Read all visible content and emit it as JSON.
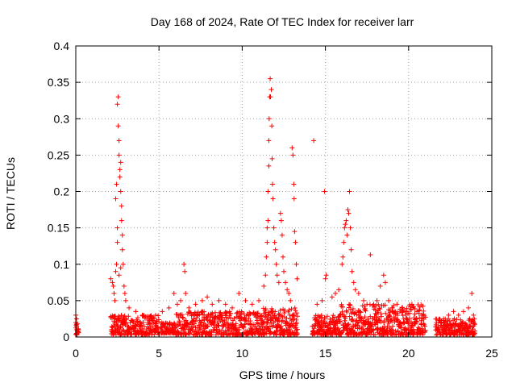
{
  "chart_data": {
    "type": "scatter",
    "title": "Day 168 of 2024, Rate Of TEC Index for receiver larr",
    "xlabel": "GPS time / hours",
    "ylabel": "ROTI / TECUs",
    "xlim": [
      0,
      25
    ],
    "ylim": [
      0,
      0.4
    ],
    "xticks": [
      0,
      5,
      10,
      15,
      20,
      25
    ],
    "xtick_labels": [
      "0",
      "5",
      "10",
      "15",
      "20",
      "25"
    ],
    "yticks": [
      0,
      0.05,
      0.1,
      0.15,
      0.2,
      0.25,
      0.3,
      0.35,
      0.4
    ],
    "ytick_labels": [
      "0",
      "0.05",
      "0.1",
      "0.15",
      "0.2",
      "0.25",
      "0.3",
      "0.35",
      "0.4"
    ],
    "grid": true,
    "marker": "+",
    "color": "#ff0000",
    "series": [
      {
        "name": "ROTI",
        "points": [
          [
            0.0,
            0.03
          ],
          [
            0.0,
            0.02
          ],
          [
            0.05,
            0.015
          ],
          [
            0.05,
            0.01
          ],
          [
            0.1,
            0.018
          ],
          [
            0.1,
            0.008
          ],
          [
            0.05,
            0.025
          ],
          [
            2.1,
            0.08
          ],
          [
            2.2,
            0.075
          ],
          [
            2.25,
            0.07
          ],
          [
            2.3,
            0.06
          ],
          [
            2.35,
            0.05
          ],
          [
            2.4,
            0.19
          ],
          [
            2.45,
            0.21
          ],
          [
            2.5,
            0.15
          ],
          [
            2.5,
            0.32
          ],
          [
            2.55,
            0.33
          ],
          [
            2.55,
            0.29
          ],
          [
            2.6,
            0.27
          ],
          [
            2.6,
            0.25
          ],
          [
            2.65,
            0.23
          ],
          [
            2.65,
            0.22
          ],
          [
            2.7,
            0.24
          ],
          [
            2.7,
            0.2
          ],
          [
            2.75,
            0.18
          ],
          [
            2.75,
            0.16
          ],
          [
            2.8,
            0.14
          ],
          [
            2.8,
            0.12
          ],
          [
            2.85,
            0.1
          ],
          [
            2.5,
            0.13
          ],
          [
            2.45,
            0.1
          ],
          [
            2.4,
            0.09
          ],
          [
            2.9,
            0.07
          ],
          [
            2.95,
            0.06
          ],
          [
            2.6,
            0.085
          ],
          [
            2.7,
            0.095
          ],
          [
            3.0,
            0.05
          ],
          [
            3.2,
            0.04
          ],
          [
            3.6,
            0.035
          ],
          [
            4.0,
            0.03
          ],
          [
            4.4,
            0.028
          ],
          [
            4.8,
            0.03
          ],
          [
            5.2,
            0.035
          ],
          [
            5.6,
            0.04
          ],
          [
            5.9,
            0.06
          ],
          [
            6.1,
            0.045
          ],
          [
            6.3,
            0.05
          ],
          [
            6.5,
            0.1
          ],
          [
            6.55,
            0.09
          ],
          [
            6.6,
            0.06
          ],
          [
            6.8,
            0.04
          ],
          [
            7.2,
            0.045
          ],
          [
            7.6,
            0.05
          ],
          [
            7.9,
            0.055
          ],
          [
            8.2,
            0.045
          ],
          [
            8.6,
            0.05
          ],
          [
            9.0,
            0.045
          ],
          [
            9.4,
            0.04
          ],
          [
            9.8,
            0.06
          ],
          [
            10.2,
            0.05
          ],
          [
            10.6,
            0.045
          ],
          [
            11.0,
            0.05
          ],
          [
            11.3,
            0.07
          ],
          [
            11.4,
            0.085
          ],
          [
            11.45,
            0.11
          ],
          [
            11.5,
            0.13
          ],
          [
            11.5,
            0.15
          ],
          [
            11.55,
            0.16
          ],
          [
            11.55,
            0.2
          ],
          [
            11.6,
            0.235
          ],
          [
            11.6,
            0.27
          ],
          [
            11.62,
            0.3
          ],
          [
            11.65,
            0.33
          ],
          [
            11.68,
            0.355
          ],
          [
            11.7,
            0.33
          ],
          [
            11.75,
            0.34
          ],
          [
            11.78,
            0.29
          ],
          [
            11.8,
            0.245
          ],
          [
            11.82,
            0.21
          ],
          [
            11.85,
            0.19
          ],
          [
            11.9,
            0.15
          ],
          [
            11.95,
            0.13
          ],
          [
            12.0,
            0.12
          ],
          [
            12.05,
            0.1
          ],
          [
            12.1,
            0.085
          ],
          [
            12.2,
            0.075
          ],
          [
            12.3,
            0.17
          ],
          [
            12.35,
            0.16
          ],
          [
            12.4,
            0.14
          ],
          [
            12.45,
            0.11
          ],
          [
            12.5,
            0.09
          ],
          [
            12.6,
            0.075
          ],
          [
            12.7,
            0.065
          ],
          [
            12.8,
            0.06
          ],
          [
            12.9,
            0.05
          ],
          [
            13.0,
            0.26
          ],
          [
            13.05,
            0.25
          ],
          [
            13.1,
            0.21
          ],
          [
            13.12,
            0.19
          ],
          [
            13.15,
            0.145
          ],
          [
            13.2,
            0.13
          ],
          [
            13.25,
            0.1
          ],
          [
            13.3,
            0.08
          ],
          [
            14.3,
            0.27
          ],
          [
            14.5,
            0.045
          ],
          [
            14.8,
            0.05
          ],
          [
            14.95,
            0.2
          ],
          [
            15.0,
            0.08
          ],
          [
            15.05,
            0.085
          ],
          [
            15.4,
            0.055
          ],
          [
            15.6,
            0.06
          ],
          [
            15.8,
            0.065
          ],
          [
            16.0,
            0.1
          ],
          [
            16.05,
            0.11
          ],
          [
            16.1,
            0.13
          ],
          [
            16.15,
            0.15
          ],
          [
            16.2,
            0.155
          ],
          [
            16.25,
            0.16
          ],
          [
            16.3,
            0.14
          ],
          [
            16.35,
            0.175
          ],
          [
            16.4,
            0.17
          ],
          [
            16.45,
            0.2
          ],
          [
            16.5,
            0.15
          ],
          [
            16.55,
            0.12
          ],
          [
            16.6,
            0.09
          ],
          [
            16.7,
            0.075
          ],
          [
            16.8,
            0.065
          ],
          [
            17.0,
            0.06
          ],
          [
            17.3,
            0.05
          ],
          [
            17.5,
            0.045
          ],
          [
            17.7,
            0.113
          ],
          [
            17.9,
            0.045
          ],
          [
            18.1,
            0.05
          ],
          [
            18.3,
            0.07
          ],
          [
            18.5,
            0.085
          ],
          [
            18.6,
            0.075
          ],
          [
            18.8,
            0.05
          ],
          [
            19.0,
            0.04
          ],
          [
            19.3,
            0.045
          ],
          [
            19.6,
            0.04
          ],
          [
            19.9,
            0.035
          ],
          [
            20.2,
            0.045
          ],
          [
            20.5,
            0.035
          ],
          [
            20.8,
            0.03
          ],
          [
            21.8,
            0.02
          ],
          [
            22.1,
            0.025
          ],
          [
            22.4,
            0.03
          ],
          [
            22.7,
            0.035
          ],
          [
            23.0,
            0.03
          ],
          [
            23.3,
            0.035
          ],
          [
            23.6,
            0.04
          ],
          [
            23.8,
            0.06
          ],
          [
            23.9,
            0.03
          ]
        ]
      }
    ],
    "dense_bands": [
      {
        "x_start": 0.0,
        "x_end": 0.15,
        "y_min": 0.003,
        "y_max": 0.02
      },
      {
        "x_start": 2.1,
        "x_end": 5.0,
        "y_min": 0.003,
        "y_max": 0.03
      },
      {
        "x_start": 5.1,
        "x_end": 6.0,
        "y_min": 0.005,
        "y_max": 0.02
      },
      {
        "x_start": 6.0,
        "x_end": 11.2,
        "y_min": 0.003,
        "y_max": 0.035
      },
      {
        "x_start": 11.2,
        "x_end": 13.3,
        "y_min": 0.003,
        "y_max": 0.04
      },
      {
        "x_start": 14.2,
        "x_end": 15.8,
        "y_min": 0.003,
        "y_max": 0.03
      },
      {
        "x_start": 15.8,
        "x_end": 21.0,
        "y_min": 0.003,
        "y_max": 0.045
      },
      {
        "x_start": 21.6,
        "x_end": 24.0,
        "y_min": 0.003,
        "y_max": 0.025
      }
    ]
  }
}
